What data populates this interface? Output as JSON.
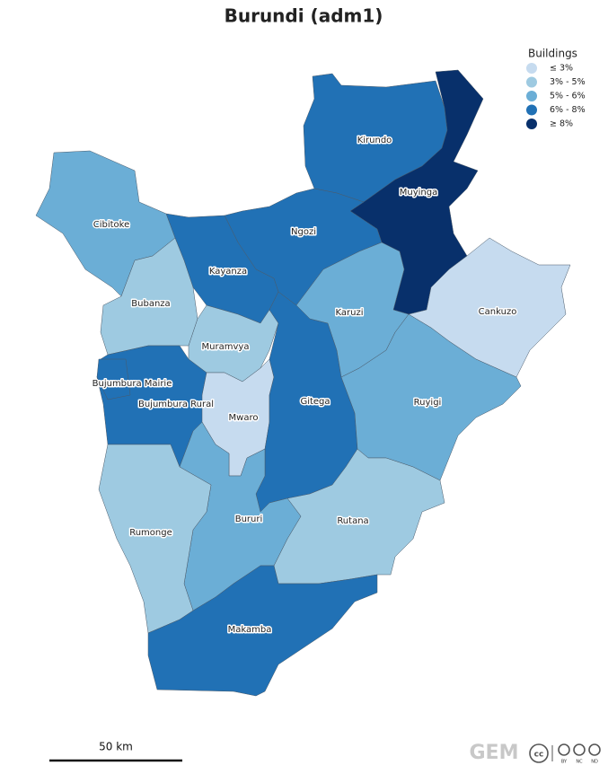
{
  "title": "Burundi (adm1)",
  "legend": {
    "title": "Buildings",
    "items": [
      {
        "label": "≤ 3%",
        "color": "#c6dbef"
      },
      {
        "label": "3% - 5%",
        "color": "#9ecae1"
      },
      {
        "label": "5% - 6%",
        "color": "#6baed6"
      },
      {
        "label": "6% - 8%",
        "color": "#2171b5"
      },
      {
        "label": "≥ 8%",
        "color": "#08306b"
      }
    ]
  },
  "regions": [
    {
      "name": "Kirundo",
      "color": "#2171b5"
    },
    {
      "name": "Muyinga",
      "color": "#08306b"
    },
    {
      "name": "Ngozi",
      "color": "#2171b5"
    },
    {
      "name": "Kayanza",
      "color": "#2171b5"
    },
    {
      "name": "Cibitoke",
      "color": "#6baed6"
    },
    {
      "name": "Bubanza",
      "color": "#9ecae1"
    },
    {
      "name": "Muramvya",
      "color": "#9ecae1"
    },
    {
      "name": "Bujumbura Rural",
      "color": "#2171b5"
    },
    {
      "name": "Bujumbura Mairie",
      "color": "#2171b5"
    },
    {
      "name": "Mwaro",
      "color": "#c6dbef"
    },
    {
      "name": "Gitega",
      "color": "#2171b5"
    },
    {
      "name": "Karuzi",
      "color": "#6baed6"
    },
    {
      "name": "Cankuzo",
      "color": "#c6dbef"
    },
    {
      "name": "Ruyigi",
      "color": "#6baed6"
    },
    {
      "name": "Rutana",
      "color": "#9ecae1"
    },
    {
      "name": "Bururi",
      "color": "#6baed6"
    },
    {
      "name": "Rumonge",
      "color": "#9ecae1"
    },
    {
      "name": "Makamba",
      "color": "#2171b5"
    }
  ],
  "scale_bar": "50 km",
  "logo": "GEM",
  "license": [
    "BY",
    "NC",
    "ND"
  ]
}
